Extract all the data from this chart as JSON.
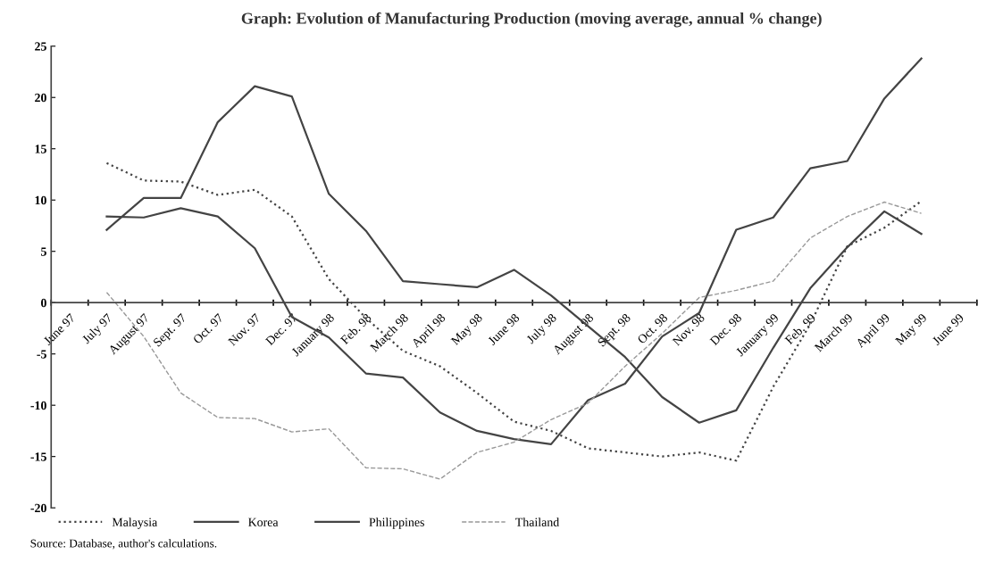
{
  "chart_data": {
    "type": "line",
    "title": "Graph: Evolution of Manufacturing Production (moving average, annual % change)",
    "categories": [
      "June 97",
      "July 97",
      "August 97",
      "Sept. 97",
      "Oct. 97",
      "Nov. 97",
      "Dec. 97",
      "January 98",
      "Feb. 98",
      "March 98",
      "April 98",
      "May 98",
      "June 98",
      "July 98",
      "August 98",
      "Sept. 98",
      "Oct. 98",
      "Nov. 98",
      "Dec. 98",
      "January 99",
      "Feb. 99",
      "March 99",
      "April 99",
      "May 99",
      "June 99"
    ],
    "series": [
      {
        "name": "Malaysia",
        "color": "#444444",
        "line_style": "dotted",
        "values": [
          null,
          13.6,
          11.9,
          11.8,
          10.5,
          11.0,
          8.4,
          2.3,
          -1.5,
          -4.7,
          -6.2,
          -8.8,
          -11.6,
          -12.5,
          -14.2,
          -14.6,
          -15.0,
          -14.6,
          -15.4,
          -8.2,
          -2.1,
          5.5,
          7.3,
          9.9,
          null
        ]
      },
      {
        "name": "Korea",
        "color": "#444444",
        "line_style": "solid",
        "values": [
          null,
          8.4,
          8.3,
          9.2,
          8.4,
          5.3,
          -1.4,
          -3.4,
          -6.9,
          -7.3,
          -10.7,
          -12.5,
          -13.3,
          -13.8,
          -9.5,
          -7.9,
          -3.3,
          -1.0,
          7.1,
          8.3,
          13.1,
          13.8,
          19.9,
          23.8,
          null
        ]
      },
      {
        "name": "Philippines",
        "color": "#444444",
        "line_style": "solid",
        "values": [
          null,
          7.1,
          10.2,
          10.2,
          17.6,
          21.1,
          20.1,
          10.6,
          7.0,
          2.1,
          1.8,
          1.5,
          3.2,
          0.7,
          -2.3,
          -5.3,
          -9.2,
          -11.7,
          -10.5,
          -4.4,
          1.4,
          5.4,
          8.9,
          6.7,
          null
        ]
      },
      {
        "name": "Thailand",
        "color": "#999999",
        "line_style": "dashed",
        "values": [
          null,
          1.0,
          -3.3,
          -8.8,
          -11.2,
          -11.3,
          -12.6,
          -12.3,
          -16.1,
          -16.2,
          -17.2,
          -14.6,
          -13.6,
          -11.4,
          -9.8,
          -6.2,
          -3.0,
          0.5,
          1.2,
          2.1,
          6.3,
          8.4,
          9.8,
          8.7,
          null
        ]
      }
    ],
    "ylim": [
      -20,
      25
    ],
    "yticks": [
      -20,
      -15,
      -10,
      -5,
      0,
      5,
      10,
      15,
      20,
      25
    ],
    "grid": false,
    "legend": "bottom left",
    "marker": "none",
    "annotations": [
      "Source: Database, author's calculations."
    ]
  }
}
